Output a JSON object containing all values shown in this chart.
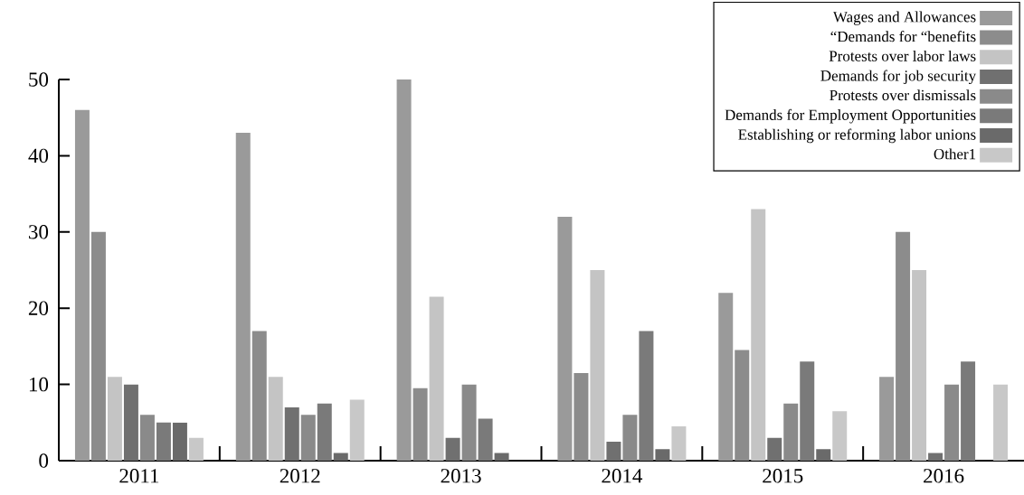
{
  "chart_data": {
    "type": "bar",
    "categories": [
      "2011",
      "2012",
      "2013",
      "2014",
      "2015",
      "2016"
    ],
    "series": [
      {
        "name": "Wages and Allowances",
        "color": "#9a9a9a",
        "values": [
          46,
          43,
          50,
          32,
          22,
          11
        ]
      },
      {
        "name": "“Demands for “benefits",
        "color": "#8c8c8c",
        "values": [
          30,
          17,
          9.5,
          11.5,
          14.5,
          30
        ]
      },
      {
        "name": "Protests over labor laws",
        "color": "#c4c4c4",
        "values": [
          11,
          11,
          21.5,
          25,
          33,
          25
        ]
      },
      {
        "name": "Demands for job security",
        "color": "#707070",
        "values": [
          10,
          7,
          3,
          2.5,
          3,
          1
        ]
      },
      {
        "name": "Protests over dismissals",
        "color": "#8a8a8a",
        "values": [
          6,
          6,
          10,
          6,
          7.5,
          10
        ]
      },
      {
        "name": "Demands for Employment Opportunities",
        "color": "#7a7a7a",
        "values": [
          5,
          7.5,
          5.5,
          17,
          13,
          13
        ]
      },
      {
        "name": "Establishing or reforming labor unions",
        "color": "#6a6a6a",
        "values": [
          5,
          1,
          1,
          1.5,
          1.5,
          0
        ]
      },
      {
        "name": "Other1",
        "color": "#c8c8c8",
        "values": [
          3,
          8,
          0,
          4.5,
          6.5,
          10
        ]
      }
    ],
    "ylim": [
      0,
      50
    ],
    "yticks": [
      0,
      10,
      20,
      30,
      40,
      50
    ],
    "legend": "top right"
  }
}
